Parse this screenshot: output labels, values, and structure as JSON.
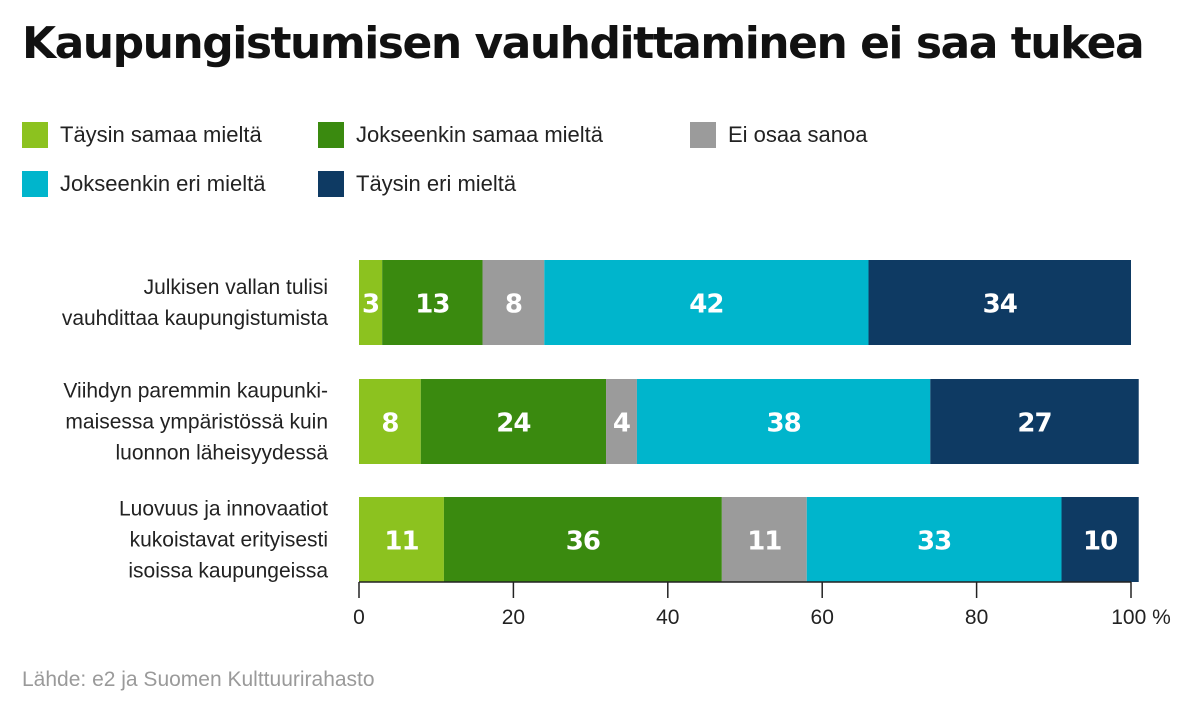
{
  "title": "Kaupungistumisen vauhdittaminen ei saa tukea",
  "source": "Lähde: e2 ja Suomen Kulttuurirahasto",
  "colors": {
    "taysin_samaa": "#8cc21f",
    "jokseenkin_samaa": "#3a8a0f",
    "ei_osaa": "#9b9b9b",
    "jokseenkin_eri": "#00b5cc",
    "taysin_eri": "#0e3a63"
  },
  "legend": [
    {
      "label": "Täysin samaa mieltä",
      "color": "#8cc21f"
    },
    {
      "label": "Jokseenkin samaa mieltä",
      "color": "#3a8a0f"
    },
    {
      "label": "Ei osaa sanoa",
      "color": "#9b9b9b"
    },
    {
      "label": "Jokseenkin eri mieltä",
      "color": "#00b5cc"
    },
    {
      "label": "Täysin eri mieltä",
      "color": "#0e3a63"
    }
  ],
  "chart_data": {
    "type": "bar",
    "orientation": "horizontal",
    "stacked": true,
    "title": "Kaupungistumisen vauhdittaminen ei saa tukea",
    "xlabel": "",
    "ylabel": "",
    "xlim": [
      0,
      100
    ],
    "x_unit": "%",
    "x_ticks": [
      "0",
      "20",
      "40",
      "60",
      "80",
      "100 %"
    ],
    "x_tick_values": [
      0,
      20,
      40,
      60,
      80,
      100
    ],
    "grid": false,
    "legend_position": "top-left",
    "categories": [
      [
        "Julkisen vallan tulisi",
        "vauhdittaa kaupungistumista"
      ],
      [
        "Viihdyn paremmin kaupunki-",
        "maisessa ympäristössä kuin",
        "luonnon läheisyydessä"
      ],
      [
        "Luovuus ja innovaatiot",
        "kukoistavat erityisesti",
        "isoissa kaupungeissa"
      ]
    ],
    "series": [
      {
        "name": "Täysin samaa mieltä",
        "color": "#8cc21f",
        "values": [
          3,
          8,
          11
        ]
      },
      {
        "name": "Jokseenkin samaa mieltä",
        "color": "#3a8a0f",
        "values": [
          13,
          24,
          36
        ]
      },
      {
        "name": "Ei osaa sanoa",
        "color": "#9b9b9b",
        "values": [
          8,
          4,
          11
        ]
      },
      {
        "name": "Jokseenkin eri mieltä",
        "color": "#00b5cc",
        "values": [
          42,
          38,
          33
        ]
      },
      {
        "name": "Täysin eri mieltä",
        "color": "#0e3a63",
        "values": [
          34,
          27,
          10
        ]
      }
    ]
  }
}
